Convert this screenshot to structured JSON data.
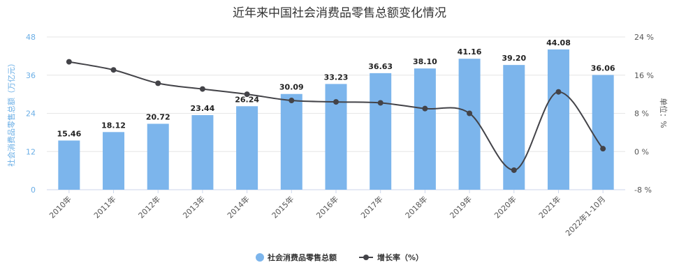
{
  "chart_data": {
    "type": "bar",
    "title": "近年来中国社会消费品零售总额变化情况",
    "categories": [
      "2010年",
      "2011年",
      "2012年",
      "2013年",
      "2014年",
      "2015年",
      "2016年",
      "2017年",
      "2018年",
      "2019年",
      "2020年",
      "2021年",
      "2022年1-10月"
    ],
    "series": [
      {
        "name": "社会消费品零售总额",
        "type": "bar",
        "axis": "left",
        "color": "#7cb5ec",
        "values": [
          15.46,
          18.12,
          20.72,
          23.44,
          26.24,
          30.09,
          33.23,
          36.63,
          38.1,
          41.16,
          39.2,
          44.08,
          36.06
        ]
      },
      {
        "name": "增长率（%）",
        "type": "line",
        "axis": "right",
        "color": "#434348",
        "values": [
          18.8,
          17.1,
          14.3,
          13.1,
          12.0,
          10.7,
          10.4,
          10.2,
          9.0,
          8.0,
          -3.9,
          12.5,
          0.6
        ]
      }
    ],
    "ylabel": "社会消费品零售总额（万亿元）",
    "y2label": "单位：%",
    "ylim": [
      0,
      48
    ],
    "yticks": [
      "0",
      "12",
      "24",
      "36",
      "48"
    ],
    "y2lim": [
      -8,
      24
    ],
    "y2ticks": [
      "-8 %",
      "0 %",
      "8 %",
      "16 %",
      "24 %"
    ],
    "grid": true,
    "legend_position": "bottom-center"
  }
}
